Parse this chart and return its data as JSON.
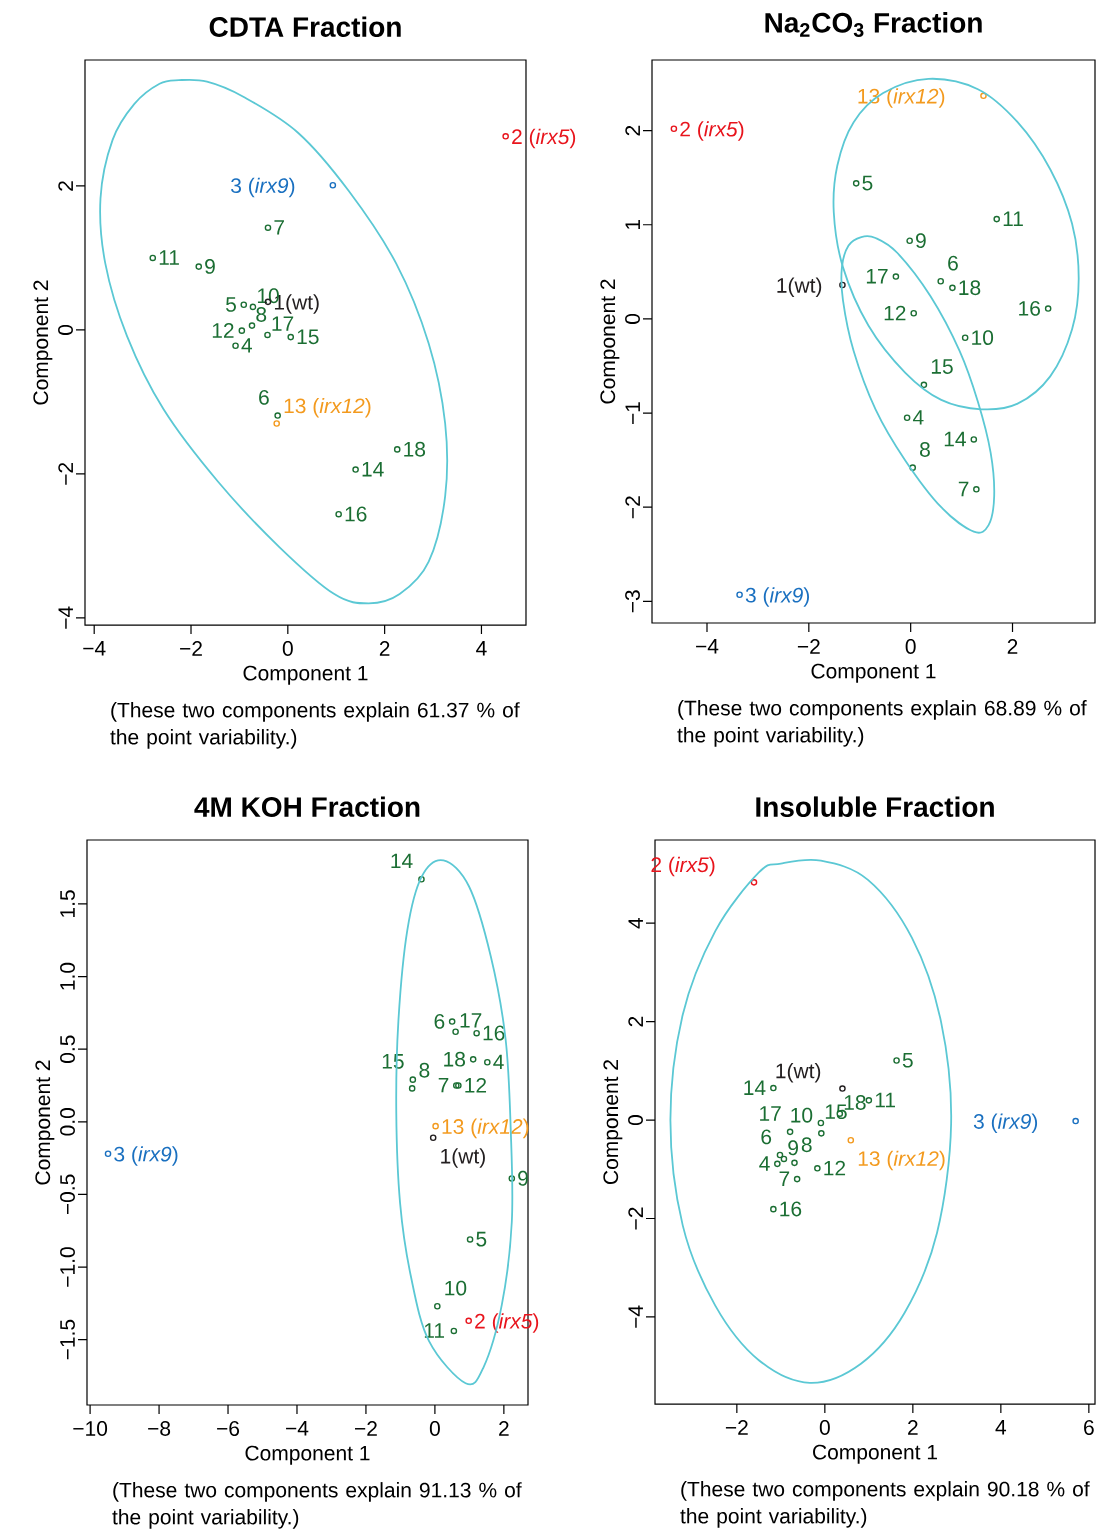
{
  "chart_data": [
    {
      "type": "scatter",
      "title": "CDTA Fraction",
      "xlabel": "Component 1",
      "ylabel": "Component 2",
      "marker": "circle",
      "xlim": [
        -4.19,
        4.92
      ],
      "ylim": [
        -4.1,
        3.75
      ],
      "xticks": [
        {
          "value": -4,
          "label": "−4"
        },
        {
          "value": -2,
          "label": "−2"
        },
        0,
        2,
        4
      ],
      "yticks": [
        {
          "value": -4,
          "label": "−4"
        },
        {
          "value": -2,
          "label": "−2"
        },
        0,
        2
      ],
      "series": [
        {
          "color": "#1b6e33",
          "x": [
            -0.91,
            -0.21,
            -0.41,
            -0.74,
            -1.84,
            -0.72,
            -2.79,
            -0.95,
            1.4,
            0.06,
            1.05,
            -0.42,
            2.26,
            -1.08
          ],
          "values": [
            0.35,
            -1.19,
            1.42,
            0.06,
            0.88,
            0.32,
            1.0,
            -0.01,
            -1.94,
            -0.1,
            -2.56,
            -0.07,
            -1.66,
            -0.22
          ]
        },
        {
          "color": "#231f20",
          "x": [
            -0.41
          ],
          "values": [
            0.39
          ]
        },
        {
          "color": "#e8141c",
          "x": [
            4.5
          ],
          "values": [
            2.69
          ]
        },
        {
          "color": "#1a70c0",
          "x": [
            0.93
          ],
          "values": [
            2.01
          ]
        },
        {
          "color": "#f39a1e",
          "x": [
            -0.23
          ],
          "values": [
            -1.3
          ]
        }
      ],
      "annotations": [
        "(These two components explain 61.37 % of the point variability.)",
        {
          "text": "2 (*irx5*)",
          "x": 4.5,
          "y": 2.69
        },
        {
          "text": "3 (*irx9*)",
          "x": 0.93,
          "y": 2.01
        },
        {
          "text": "13 (*irx12*)",
          "x": -0.23,
          "y": -1.3
        },
        {
          "text": "1(wt)",
          "x": -0.41,
          "y": 0.39
        },
        {
          "text": "5",
          "x": -0.91,
          "y": 0.35
        },
        {
          "text": "6",
          "x": -0.21,
          "y": -1.19
        },
        {
          "text": "7",
          "x": -0.41,
          "y": 1.42
        },
        {
          "text": "8",
          "x": -0.74,
          "y": 0.06
        },
        {
          "text": "9",
          "x": -1.84,
          "y": 0.88
        },
        {
          "text": "10",
          "x": -0.72,
          "y": 0.32
        },
        {
          "text": "11",
          "x": -2.79,
          "y": 1.0
        },
        {
          "text": "12",
          "x": -0.95,
          "y": -0.01
        },
        {
          "text": "14",
          "x": 1.4,
          "y": -1.94
        },
        {
          "text": "15",
          "x": 0.06,
          "y": -0.1
        },
        {
          "text": "16",
          "x": 1.05,
          "y": -2.56
        },
        {
          "text": "17",
          "x": -0.42,
          "y": -0.07
        },
        {
          "text": "18",
          "x": 2.26,
          "y": -1.66
        },
        {
          "text": "4",
          "x": -1.08,
          "y": -0.22
        }
      ]
    },
    {
      "type": "scatter",
      "title": "Na$_{2}$CO$_{3}$ Fraction",
      "xlabel": "Component 1",
      "ylabel": "Component 2",
      "marker": "circle",
      "xlim": [
        -5.08,
        3.62
      ],
      "ylim": [
        -3.23,
        2.75
      ],
      "xticks": [
        {
          "value": -4,
          "label": "−4"
        },
        {
          "value": -2,
          "label": "−2"
        },
        0,
        2
      ],
      "yticks": [
        {
          "value": -3,
          "label": "−3"
        },
        {
          "value": -2,
          "label": "−2"
        },
        {
          "value": -1,
          "label": "−1"
        },
        0,
        1,
        2
      ],
      "series": [
        {
          "color": "#1b6e33",
          "x": [
            -1.07,
            0.59,
            1.29,
            0.04,
            -0.02,
            1.07,
            1.69,
            0.06,
            1.24,
            0.26,
            2.7,
            -0.29,
            0.82,
            -0.07
          ],
          "values": [
            1.44,
            0.4,
            -1.81,
            -1.58,
            0.83,
            -0.2,
            1.06,
            0.06,
            -1.28,
            -0.7,
            0.11,
            0.45,
            0.33,
            -1.05
          ]
        },
        {
          "color": "#231f20",
          "x": [
            -1.34
          ],
          "values": [
            0.36
          ]
        },
        {
          "color": "#e8141c",
          "x": [
            -4.65
          ],
          "values": [
            2.02
          ]
        },
        {
          "color": "#1a70c0",
          "x": [
            -3.36
          ],
          "values": [
            -2.93
          ]
        },
        {
          "color": "#f39a1e",
          "x": [
            1.43
          ],
          "values": [
            2.37
          ]
        }
      ],
      "annotations": [
        "(These two components explain 68.89 % of the point variability.)",
        {
          "text": "2 (*irx5*)",
          "x": -4.65,
          "y": 2.02
        },
        {
          "text": "3 (*irx9*)",
          "x": -3.36,
          "y": -2.93
        },
        {
          "text": "13 (*irx12*)",
          "x": 1.43,
          "y": 2.37
        },
        {
          "text": "1(wt)",
          "x": -1.34,
          "y": 0.36
        },
        {
          "text": "5",
          "x": -1.07,
          "y": 1.44
        },
        {
          "text": "6",
          "x": 0.59,
          "y": 0.4
        },
        {
          "text": "7",
          "x": 1.29,
          "y": -1.81
        },
        {
          "text": "8",
          "x": 0.04,
          "y": -1.58
        },
        {
          "text": "9",
          "x": -0.02,
          "y": 0.83
        },
        {
          "text": "10",
          "x": 1.07,
          "y": -0.2
        },
        {
          "text": "11",
          "x": 1.69,
          "y": 1.06
        },
        {
          "text": "12",
          "x": 0.06,
          "y": 0.06
        },
        {
          "text": "14",
          "x": 1.24,
          "y": -1.28
        },
        {
          "text": "15",
          "x": 0.26,
          "y": -0.7
        },
        {
          "text": "16",
          "x": 2.7,
          "y": 0.11
        },
        {
          "text": "17",
          "x": -0.29,
          "y": 0.45
        },
        {
          "text": "18",
          "x": 0.82,
          "y": 0.33
        },
        {
          "text": "4",
          "x": -0.07,
          "y": -1.05
        }
      ]
    },
    {
      "type": "scatter",
      "title": "4M KOH Fraction",
      "xlabel": "Component 1",
      "ylabel": "Component 2",
      "marker": "circle",
      "xlim": [
        -10.09,
        2.7
      ],
      "ylim": [
        -1.95,
        1.94
      ],
      "xticks": [
        {
          "value": -10,
          "label": "−10"
        },
        {
          "value": -8,
          "label": "−8"
        },
        {
          "value": -6,
          "label": "−6"
        },
        {
          "value": -4,
          "label": "−4"
        },
        {
          "value": -2,
          "label": "−2"
        },
        0,
        2
      ],
      "yticks": [
        {
          "value": -1.5,
          "label": "−1.5"
        },
        {
          "value": -1,
          "label": "−1.0"
        },
        {
          "value": -0.5,
          "label": "−0.5"
        },
        {
          "value": 0,
          "label": "0.0"
        },
        0.5,
        {
          "value": 1,
          "label": "1.0"
        },
        1.5
      ],
      "series": [
        {
          "color": "#1b6e33",
          "x": [
            1.02,
            0.5,
            0.62,
            -0.66,
            2.23,
            0.07,
            0.55,
            0.68,
            -0.39,
            -0.64,
            1.21,
            0.6,
            1.11,
            1.52
          ],
          "values": [
            -0.81,
            0.69,
            0.25,
            0.23,
            -0.39,
            -1.27,
            -1.44,
            0.25,
            1.67,
            0.29,
            0.61,
            0.62,
            0.43,
            0.41
          ]
        },
        {
          "color": "#231f20",
          "x": [
            -0.05
          ],
          "values": [
            -0.11
          ]
        },
        {
          "color": "#e8141c",
          "x": [
            0.98
          ],
          "values": [
            -1.37
          ]
        },
        {
          "color": "#1a70c0",
          "x": [
            -9.48
          ],
          "values": [
            -0.22
          ]
        },
        {
          "color": "#f39a1e",
          "x": [
            0.02
          ],
          "values": [
            -0.03
          ]
        }
      ],
      "annotations": [
        "(These two components explain 91.13 % of the point variability.)",
        {
          "text": "2 (*irx5*)",
          "x": 0.98,
          "y": -1.37
        },
        {
          "text": "3 (*irx9*)",
          "x": -9.48,
          "y": -0.22
        },
        {
          "text": "13 (*irx12*)",
          "x": 0.02,
          "y": -0.03
        },
        {
          "text": "1(wt)",
          "x": -0.05,
          "y": -0.11
        },
        {
          "text": "5",
          "x": 1.02,
          "y": -0.81
        },
        {
          "text": "6",
          "x": 0.5,
          "y": 0.69
        },
        {
          "text": "7",
          "x": 0.62,
          "y": 0.25
        },
        {
          "text": "8",
          "x": -0.66,
          "y": 0.23
        },
        {
          "text": "9",
          "x": 2.23,
          "y": -0.39
        },
        {
          "text": "10",
          "x": 0.07,
          "y": -1.27
        },
        {
          "text": "11",
          "x": 0.55,
          "y": -1.44
        },
        {
          "text": "12",
          "x": 0.68,
          "y": 0.25
        },
        {
          "text": "14",
          "x": -0.39,
          "y": 1.67
        },
        {
          "text": "15",
          "x": -0.64,
          "y": 0.29
        },
        {
          "text": "16",
          "x": 1.21,
          "y": 0.61
        },
        {
          "text": "17",
          "x": 0.6,
          "y": 0.62
        },
        {
          "text": "18",
          "x": 1.11,
          "y": 0.43
        },
        {
          "text": "4",
          "x": 1.52,
          "y": 0.41
        }
      ]
    },
    {
      "type": "scatter",
      "title": "Insoluble Fraction",
      "xlabel": "Component 1",
      "ylabel": "Component 2",
      "marker": "circle",
      "xlim": [
        -3.86,
        6.14
      ],
      "ylim": [
        -5.77,
        5.69
      ],
      "xticks": [
        {
          "value": -2,
          "label": "−2"
        },
        0,
        2,
        4,
        6
      ],
      "yticks": [
        {
          "value": -4,
          "label": "−4"
        },
        {
          "value": -2,
          "label": "−2"
        },
        0,
        2,
        4
      ],
      "series": [
        {
          "color": "#1b6e33",
          "x": [
            1.63,
            -1.02,
            -0.63,
            -0.69,
            -0.93,
            -0.08,
            1.0,
            -0.17,
            -1.17,
            -0.09,
            -1.17,
            -0.79,
            0.34,
            -1.08
          ],
          "values": [
            1.21,
            -0.71,
            -1.2,
            -0.87,
            -0.79,
            -0.27,
            0.4,
            -0.98,
            0.65,
            -0.06,
            -1.81,
            -0.24,
            0.13,
            -0.89
          ]
        },
        {
          "color": "#231f20",
          "x": [
            0.4
          ],
          "values": [
            0.64
          ]
        },
        {
          "color": "#e8141c",
          "x": [
            -1.61
          ],
          "values": [
            4.83
          ]
        },
        {
          "color": "#1a70c0",
          "x": [
            5.7
          ],
          "values": [
            -0.02
          ]
        },
        {
          "color": "#f39a1e",
          "x": [
            0.59
          ],
          "values": [
            -0.41
          ]
        }
      ],
      "annotations": [
        "(These two components explain 90.18 % of the point variability.)",
        {
          "text": "2 (*irx5*)",
          "x": -1.61,
          "y": 4.83
        },
        {
          "text": "3 (*irx9*)",
          "x": 5.7,
          "y": -0.02
        },
        {
          "text": "13 (*irx12*)",
          "x": 0.59,
          "y": -0.41
        },
        {
          "text": "1(wt)",
          "x": 0.4,
          "y": 0.64
        },
        {
          "text": "5",
          "x": 1.63,
          "y": 1.21
        },
        {
          "text": "6",
          "x": -1.02,
          "y": -0.71
        },
        {
          "text": "7",
          "x": -0.63,
          "y": -1.2
        },
        {
          "text": "8",
          "x": -0.69,
          "y": -0.87
        },
        {
          "text": "9",
          "x": -0.93,
          "y": -0.79
        },
        {
          "text": "10",
          "x": -0.08,
          "y": -0.27
        },
        {
          "text": "11",
          "x": 1.0,
          "y": 0.4
        },
        {
          "text": "12",
          "x": -0.17,
          "y": -0.98
        },
        {
          "text": "14",
          "x": -1.17,
          "y": 0.65
        },
        {
          "text": "15",
          "x": -0.09,
          "y": -0.06
        },
        {
          "text": "16",
          "x": -1.17,
          "y": -1.81
        },
        {
          "text": "17",
          "x": -0.79,
          "y": -0.24
        },
        {
          "text": "18",
          "x": 0.34,
          "y": 0.13
        },
        {
          "text": "4",
          "x": -1.08,
          "y": -0.89
        }
      ]
    }
  ]
}
